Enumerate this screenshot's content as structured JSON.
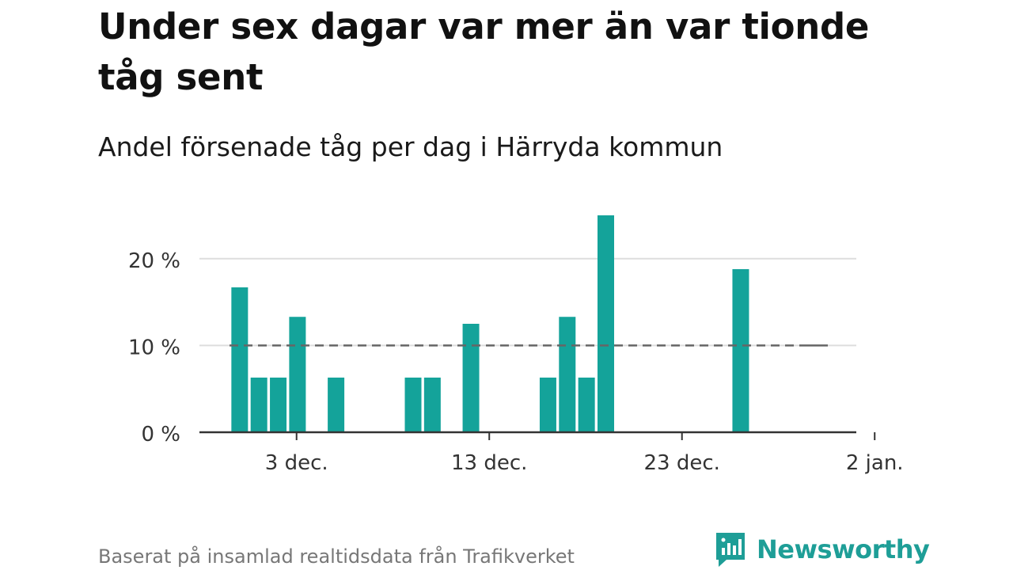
{
  "title": "Under sex dagar var mer än var tionde tåg sent",
  "subtitle": "Andel försenade tåg per dag i Härryda kommun",
  "source": "Baserat på insamlad realtidsdata från Trafikverket",
  "brand": {
    "name": "Newsworthy",
    "icon": "newsworthy-bar-chart-logo",
    "color": "#1e9e97"
  },
  "colors": {
    "bar": "#14a39a",
    "reference_line": "#666666",
    "grid": "#dddddd",
    "axis": "#333333"
  },
  "chart_data": {
    "type": "bar",
    "x": [
      "29 nov.",
      "30 nov.",
      "1 dec.",
      "2 dec.",
      "3 dec.",
      "4 dec.",
      "5 dec.",
      "6 dec.",
      "7 dec.",
      "8 dec.",
      "9 dec.",
      "10 dec.",
      "11 dec.",
      "12 dec.",
      "13 dec.",
      "14 dec.",
      "15 dec.",
      "16 dec.",
      "17 dec.",
      "18 dec.",
      "19 dec.",
      "20 dec.",
      "21 dec.",
      "22 dec.",
      "23 dec.",
      "24 dec.",
      "25 dec.",
      "26 dec.",
      "27 dec.",
      "28 dec.",
      "29 dec.",
      "30 dec.",
      "31 dec.",
      "1 jan.",
      "2 jan."
    ],
    "values": [
      0,
      16.7,
      6.3,
      6.3,
      13.3,
      0,
      6.3,
      0,
      0,
      0,
      6.3,
      6.3,
      0,
      12.5,
      0,
      0,
      0,
      6.3,
      13.3,
      6.3,
      25.0,
      0,
      0,
      0,
      0,
      0,
      0,
      18.8,
      0,
      0,
      0,
      0,
      0,
      0,
      0
    ],
    "xticks": [
      "3 dec.",
      "13 dec.",
      "23 dec.",
      "2 jan."
    ],
    "yticks": [
      "0 %",
      "10 %",
      "20 %"
    ],
    "ylim": [
      0,
      25
    ],
    "reference_value": 10,
    "grid": true,
    "xlabel": "",
    "ylabel": ""
  }
}
